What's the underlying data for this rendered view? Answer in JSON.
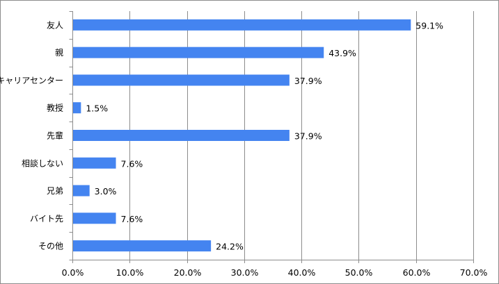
{
  "chart_data": {
    "type": "bar",
    "orientation": "horizontal",
    "categories": [
      "友人",
      "親",
      "キャリアセンター",
      "教授",
      "先輩",
      "相談しない",
      "兄弟",
      "バイト先",
      "その他"
    ],
    "values": [
      59.1,
      43.9,
      37.9,
      1.5,
      37.9,
      7.6,
      3.0,
      7.6,
      24.2
    ],
    "value_labels": [
      "59.1%",
      "43.9%",
      "37.9%",
      "1.5%",
      "37.9%",
      "7.6%",
      "3.0%",
      "7.6%",
      "24.2%"
    ],
    "xlim": [
      0,
      70
    ],
    "xticks": [
      0,
      10,
      20,
      30,
      40,
      50,
      60,
      70
    ],
    "xtick_labels": [
      "0.0%",
      "10.0%",
      "20.0%",
      "30.0%",
      "40.0%",
      "50.0%",
      "60.0%",
      "70.0%"
    ],
    "grid": "vertical",
    "legend": "none",
    "bar_color": "#4484f0",
    "title": "",
    "xlabel": "",
    "ylabel": ""
  }
}
